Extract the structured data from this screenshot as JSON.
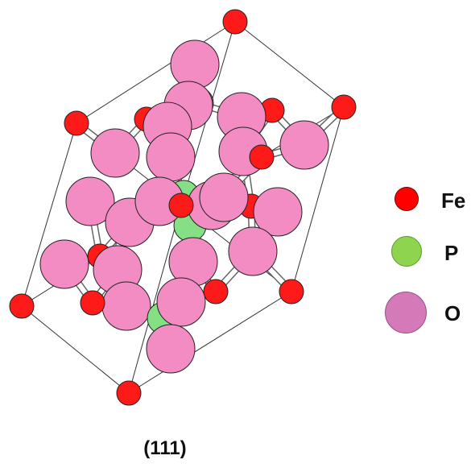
{
  "legend": [
    {
      "key": "Fe",
      "label": "Fe",
      "color": "#ff0000",
      "stroke": "#7a0000"
    },
    {
      "key": "P",
      "label": "P",
      "color": "#8ed44f",
      "stroke": "#5a9a2a"
    },
    {
      "key": "O",
      "label": "O",
      "color": "#d47ab8",
      "stroke": "#9a4f86"
    }
  ],
  "caption": "(111)",
  "colors": {
    "fe_fill": "#ff1a1a",
    "p_fill": "#85e085",
    "o_fill": "#f48cc4",
    "bond": "#ffffff",
    "outline": "#222222"
  }
}
